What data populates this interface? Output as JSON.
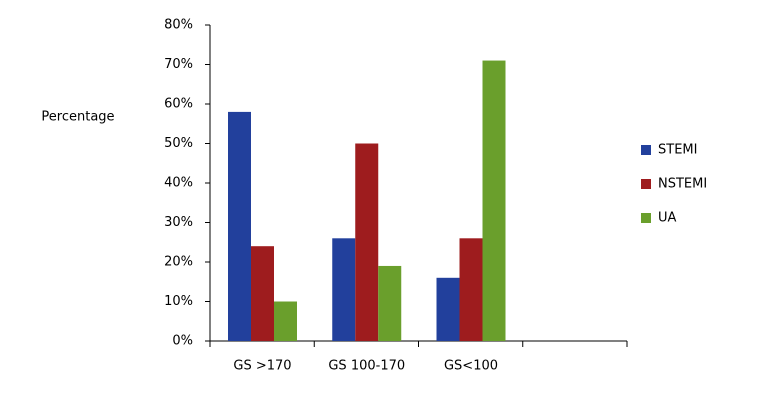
{
  "chart_data": {
    "type": "bar",
    "y_label": "Percentage",
    "categories": [
      "GS >170",
      "GS 100-170",
      "GS<100",
      null
    ],
    "series": [
      {
        "name": "STEMI",
        "color": "#22409c",
        "values": [
          58,
          26,
          16,
          null
        ]
      },
      {
        "name": "NSTEMI",
        "color": "#9e1c1e",
        "values": [
          24,
          50,
          26,
          null
        ]
      },
      {
        "name": "UA",
        "color": "#6a9f2c",
        "values": [
          10,
          19,
          71,
          null
        ]
      }
    ],
    "ylim": [
      0,
      80
    ],
    "yticks": [
      {
        "value": 0,
        "label": "0%"
      },
      {
        "value": 10,
        "label": "10%"
      },
      {
        "value": 20,
        "label": "20%"
      },
      {
        "value": 30,
        "label": "30%"
      },
      {
        "value": 40,
        "label": "40%"
      },
      {
        "value": 50,
        "label": "50%"
      },
      {
        "value": 60,
        "label": "60%"
      },
      {
        "value": 70,
        "label": "70%"
      },
      {
        "value": 80,
        "label": "80%"
      }
    ],
    "grid": false,
    "legend": "right"
  }
}
